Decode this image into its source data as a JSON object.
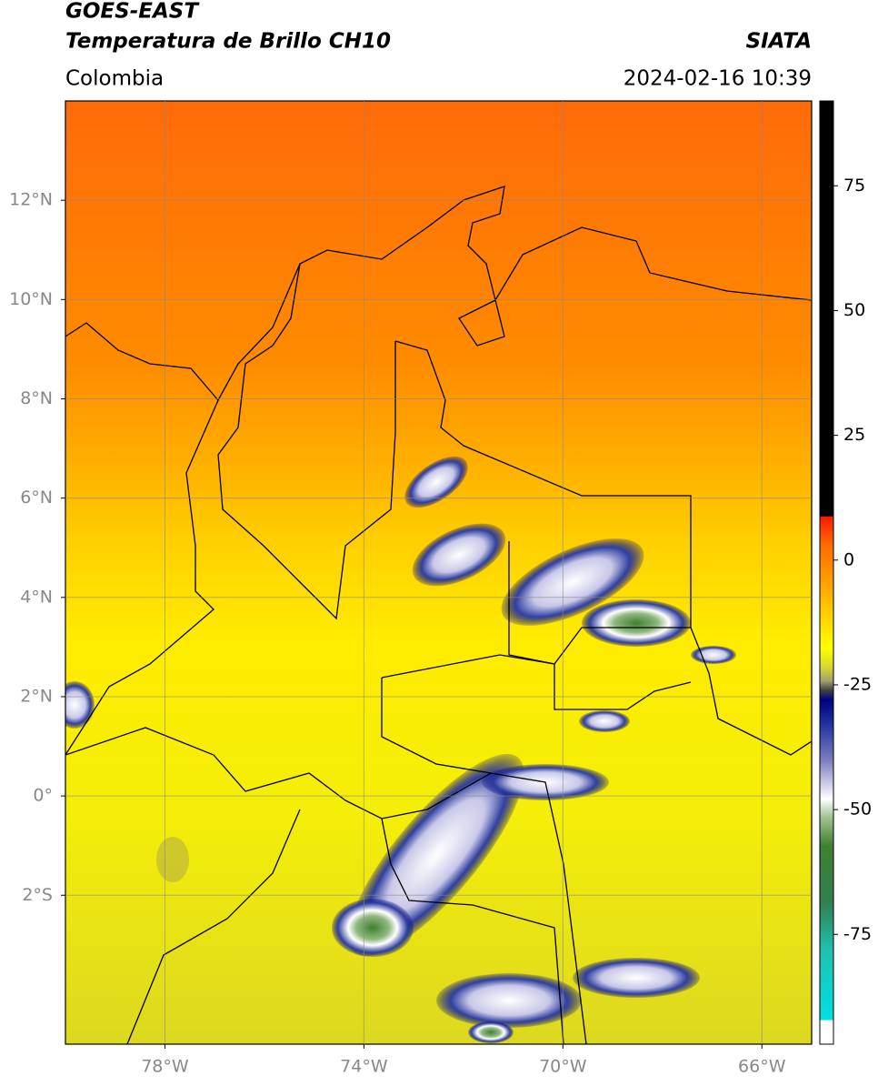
{
  "chart_data": {
    "type": "map",
    "title": "GOES-EAST",
    "subtitle": "Temperatura de Brillo CH10",
    "source": "SIATA",
    "region": "Colombia",
    "datetime": "2024-02-16 10:39",
    "xlim": [
      -80,
      -65
    ],
    "ylim": [
      -5,
      14
    ],
    "xticks": [
      {
        "value": -78,
        "label": "78°W"
      },
      {
        "value": -74,
        "label": "74°W"
      },
      {
        "value": -70,
        "label": "70°W"
      },
      {
        "value": -66,
        "label": "66°W"
      }
    ],
    "yticks": [
      {
        "value": 12,
        "label": "12°N"
      },
      {
        "value": 10,
        "label": "10°N"
      },
      {
        "value": 8,
        "label": "8°N"
      },
      {
        "value": 6,
        "label": "6°N"
      },
      {
        "value": 4,
        "label": "4°N"
      },
      {
        "value": 2,
        "label": "2°N"
      },
      {
        "value": 0,
        "label": "0°"
      },
      {
        "value": -2,
        "label": "2°S"
      }
    ],
    "grid": true,
    "colorbar": {
      "lim": [
        -97,
        92
      ],
      "ticks": [
        75,
        50,
        25,
        0,
        -25,
        -50,
        -75
      ]
    }
  }
}
